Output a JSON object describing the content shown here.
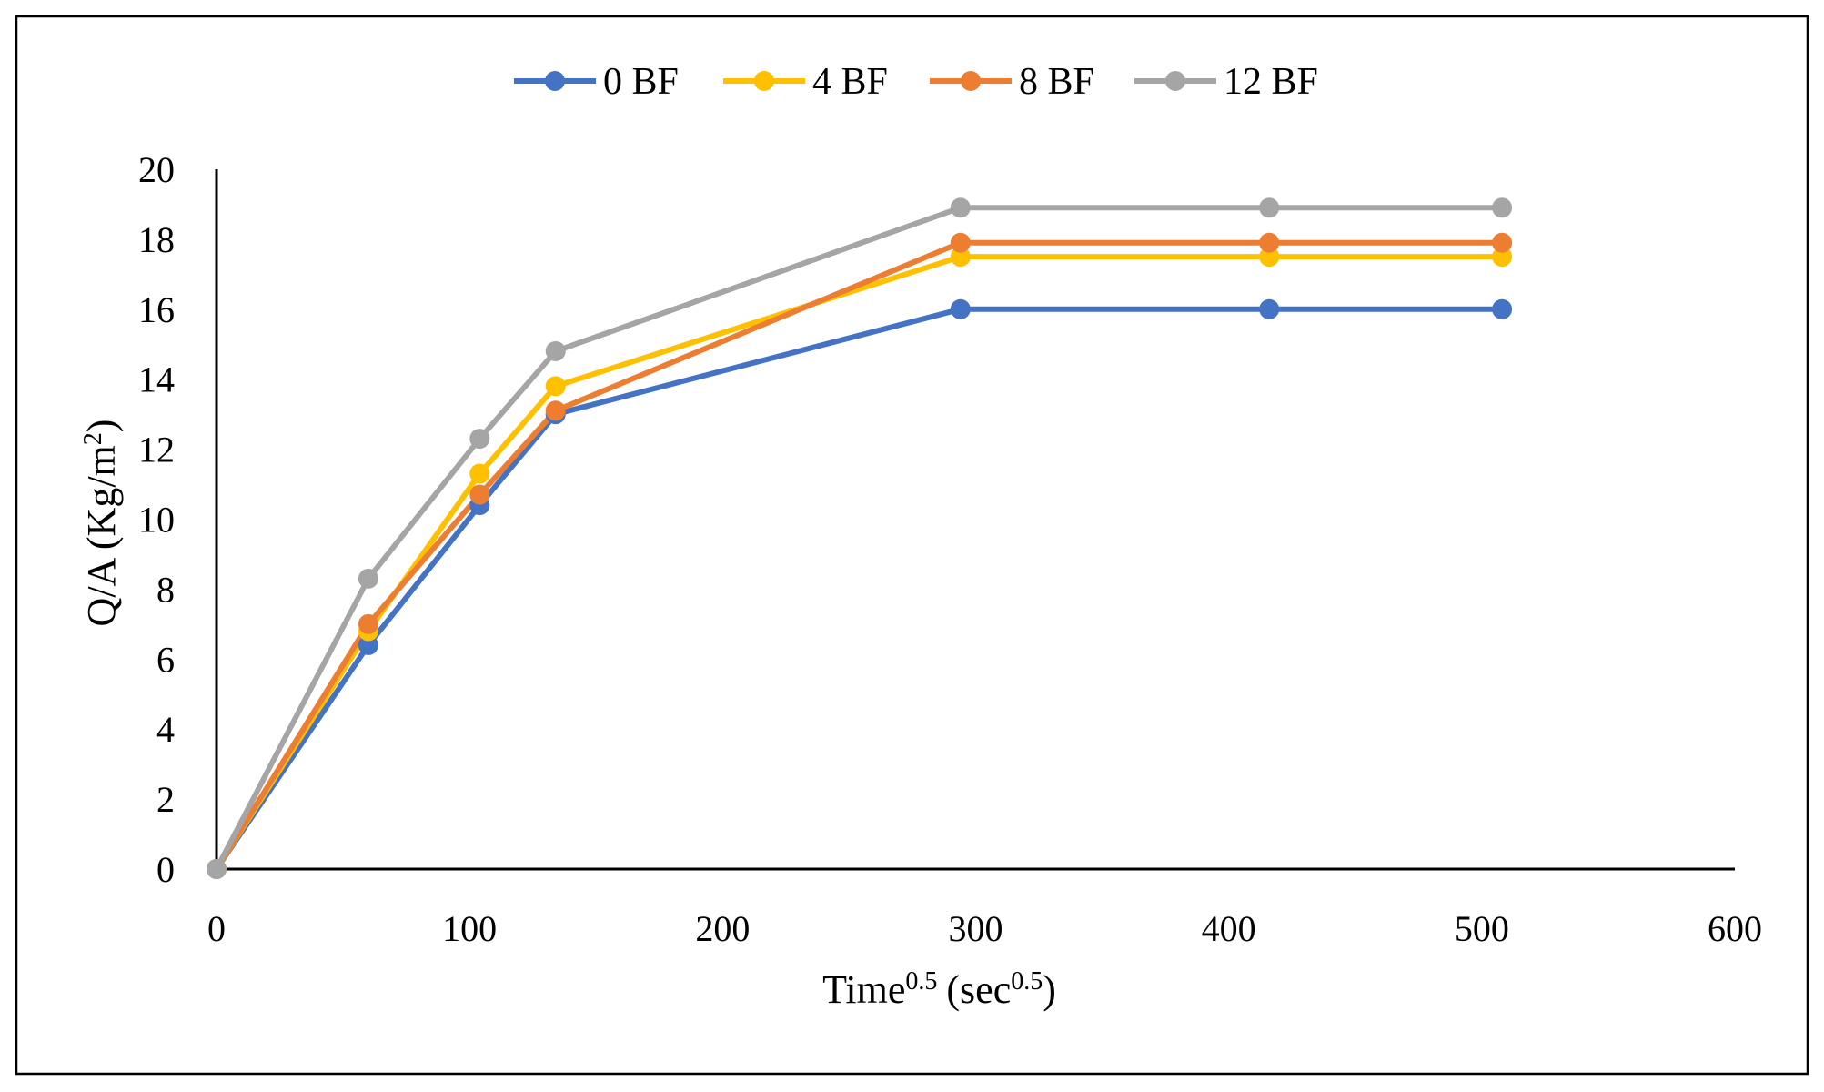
{
  "chart_data": {
    "type": "line",
    "title": "",
    "xlabel": {
      "main": "Time",
      "main_sup": "0.5",
      "unit_open": "(sec",
      "unit_sup": "0.5",
      "unit_close": ")"
    },
    "ylabel": {
      "main": "Q/A (Kg/m",
      "sup": "2",
      "close": ")"
    },
    "xlim": [
      0,
      600
    ],
    "ylim": [
      0,
      20
    ],
    "xticks": [
      0,
      100,
      200,
      300,
      400,
      500,
      600
    ],
    "yticks": [
      0,
      2,
      4,
      6,
      8,
      10,
      12,
      14,
      16,
      18,
      20
    ],
    "grid": false,
    "legend_position": "top-center",
    "x": [
      0,
      60,
      104,
      134,
      294,
      416,
      508
    ],
    "series": [
      {
        "name": "0 BF",
        "color": "#4472C4",
        "values": [
          0,
          6.4,
          10.4,
          13.0,
          16.0,
          16.0,
          16.0
        ]
      },
      {
        "name": "4 BF",
        "color": "#FFC000",
        "values": [
          0,
          6.8,
          11.3,
          13.8,
          17.5,
          17.5,
          17.5
        ]
      },
      {
        "name": "8 BF",
        "color": "#ED7D31",
        "values": [
          0,
          7.0,
          10.7,
          13.1,
          17.9,
          17.9,
          17.9
        ]
      },
      {
        "name": "12 BF",
        "color": "#A5A5A5",
        "values": [
          0,
          8.3,
          12.3,
          14.8,
          18.9,
          18.9,
          18.9
        ]
      }
    ]
  }
}
